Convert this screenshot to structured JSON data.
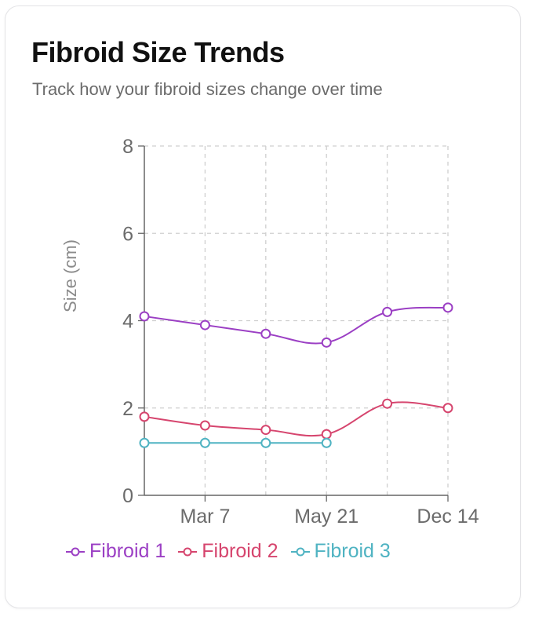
{
  "card": {
    "title": "Fibroid Size Trends",
    "subtitle": "Track how your fibroid sizes change over time"
  },
  "chart_data": {
    "type": "line",
    "ylabel": "Size (cm)",
    "xlabel": "",
    "ylim": [
      0,
      8
    ],
    "yticks": [
      "0",
      "2",
      "4",
      "6",
      "8"
    ],
    "x_slots": 6,
    "xtick_labels": [
      {
        "slot": 1,
        "label": "Mar 7"
      },
      {
        "slot": 3,
        "label": "May 21"
      },
      {
        "slot": 5,
        "label": "Dec 14"
      }
    ],
    "grid": true,
    "legend_position": "bottom",
    "series": [
      {
        "name": "Fibroid 1",
        "color": "#9b3fc4",
        "values": [
          4.1,
          3.9,
          3.7,
          3.5,
          4.2,
          4.3
        ]
      },
      {
        "name": "Fibroid 2",
        "color": "#d6456e",
        "values": [
          1.8,
          1.6,
          1.5,
          1.4,
          2.1,
          2.0
        ]
      },
      {
        "name": "Fibroid 3",
        "color": "#4fb3c2",
        "values": [
          1.2,
          1.2,
          1.2,
          1.2,
          null,
          null
        ]
      }
    ]
  }
}
